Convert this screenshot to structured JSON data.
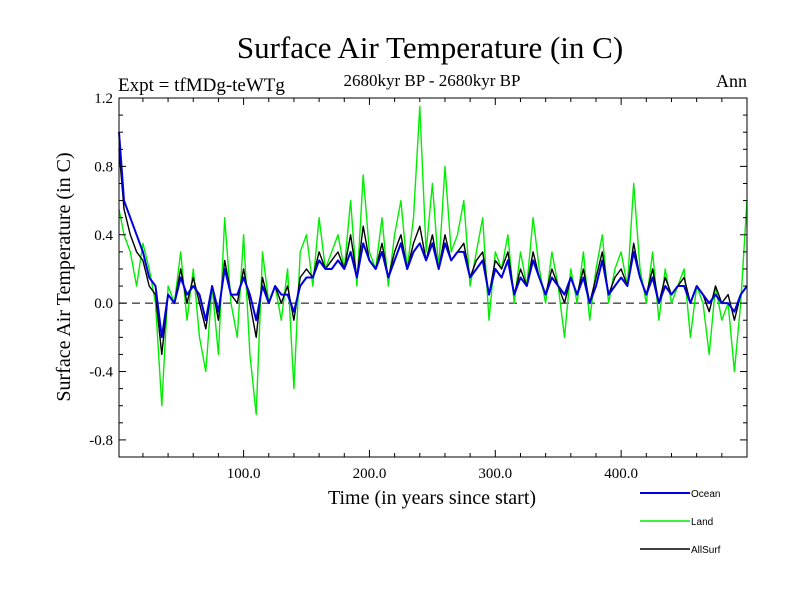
{
  "chart_data": {
    "type": "line",
    "title": "Surface Air Temperature (in C)",
    "subtitle_left": "Expt = tfMDg-teWTg",
    "subtitle_center": "2680kyr BP - 2680kyr BP",
    "subtitle_right": "Ann",
    "xlabel": "Time (in years since start)",
    "ylabel": "Surface Air Temperature (in C)",
    "xlim": [
      1,
      500
    ],
    "ylim": [
      -0.9,
      1.2
    ],
    "xticks": [
      100,
      200,
      300,
      400
    ],
    "xtick_labels": [
      "100.0",
      "200.0",
      "300.0",
      "400.0"
    ],
    "yticks": [
      -0.8,
      -0.4,
      0.0,
      0.4,
      0.8,
      1.2
    ],
    "ytick_labels": [
      "-0.8",
      "-0.4",
      "0.0",
      "0.4",
      "0.8",
      "1.2"
    ],
    "reference_line": 0.0,
    "legend_position": "bottom-right",
    "series": [
      {
        "name": "Land",
        "color": "#00ee00",
        "x": [
          1,
          5,
          10,
          15,
          20,
          25,
          30,
          35,
          40,
          45,
          50,
          55,
          60,
          65,
          70,
          75,
          80,
          85,
          90,
          95,
          100,
          105,
          110,
          115,
          120,
          125,
          130,
          135,
          140,
          145,
          150,
          155,
          160,
          165,
          170,
          175,
          180,
          185,
          190,
          195,
          200,
          205,
          210,
          215,
          220,
          225,
          230,
          235,
          240,
          245,
          250,
          255,
          260,
          265,
          270,
          275,
          280,
          285,
          290,
          295,
          300,
          305,
          310,
          315,
          320,
          325,
          330,
          335,
          340,
          345,
          350,
          355,
          360,
          365,
          370,
          375,
          380,
          385,
          390,
          395,
          400,
          405,
          410,
          415,
          420,
          425,
          430,
          435,
          440,
          445,
          450,
          455,
          460,
          465,
          470,
          475,
          480,
          485,
          490,
          495,
          500
        ],
        "values": [
          0.55,
          0.4,
          0.3,
          0.1,
          0.35,
          0.2,
          0.0,
          -0.6,
          0.1,
          0.0,
          0.3,
          -0.1,
          0.2,
          -0.2,
          -0.4,
          0.1,
          -0.3,
          0.5,
          0.0,
          -0.2,
          0.4,
          -0.3,
          -0.65,
          0.3,
          0.0,
          0.1,
          -0.1,
          0.2,
          -0.5,
          0.3,
          0.4,
          0.1,
          0.5,
          0.2,
          0.3,
          0.4,
          0.2,
          0.6,
          0.1,
          0.75,
          0.3,
          0.2,
          0.5,
          0.1,
          0.4,
          0.6,
          0.2,
          0.5,
          1.15,
          0.3,
          0.7,
          0.2,
          0.8,
          0.3,
          0.4,
          0.6,
          0.1,
          0.3,
          0.5,
          -0.1,
          0.3,
          0.2,
          0.4,
          0.0,
          0.3,
          0.1,
          0.5,
          0.2,
          0.0,
          0.3,
          0.1,
          -0.2,
          0.2,
          0.0,
          0.3,
          -0.1,
          0.2,
          0.4,
          0.0,
          0.2,
          0.3,
          0.1,
          0.7,
          0.2,
          0.0,
          0.3,
          -0.1,
          0.2,
          0.0,
          0.1,
          0.2,
          -0.2,
          0.1,
          0.0,
          -0.3,
          0.1,
          -0.1,
          0.0,
          -0.4,
          0.0,
          0.6
        ]
      },
      {
        "name": "AllSurf",
        "color": "#000000",
        "x": [
          1,
          5,
          10,
          15,
          20,
          25,
          30,
          35,
          40,
          45,
          50,
          55,
          60,
          65,
          70,
          75,
          80,
          85,
          90,
          95,
          100,
          105,
          110,
          115,
          120,
          125,
          130,
          135,
          140,
          145,
          150,
          155,
          160,
          165,
          170,
          175,
          180,
          185,
          190,
          195,
          200,
          205,
          210,
          215,
          220,
          225,
          230,
          235,
          240,
          245,
          250,
          255,
          260,
          265,
          270,
          275,
          280,
          285,
          290,
          295,
          300,
          305,
          310,
          315,
          320,
          325,
          330,
          335,
          340,
          345,
          350,
          355,
          360,
          365,
          370,
          375,
          380,
          385,
          390,
          395,
          400,
          405,
          410,
          415,
          420,
          425,
          430,
          435,
          440,
          445,
          450,
          455,
          460,
          465,
          470,
          475,
          480,
          485,
          490,
          495,
          500
        ],
        "values": [
          0.9,
          0.55,
          0.4,
          0.3,
          0.25,
          0.1,
          0.05,
          -0.3,
          0.05,
          0.0,
          0.2,
          0.0,
          0.15,
          0.0,
          -0.15,
          0.1,
          -0.1,
          0.25,
          0.05,
          0.0,
          0.2,
          0.0,
          -0.2,
          0.15,
          0.0,
          0.1,
          0.0,
          0.1,
          -0.1,
          0.15,
          0.2,
          0.15,
          0.3,
          0.2,
          0.25,
          0.3,
          0.2,
          0.4,
          0.15,
          0.45,
          0.25,
          0.2,
          0.35,
          0.15,
          0.3,
          0.4,
          0.2,
          0.35,
          0.45,
          0.25,
          0.4,
          0.2,
          0.4,
          0.25,
          0.3,
          0.35,
          0.15,
          0.25,
          0.3,
          0.05,
          0.25,
          0.2,
          0.3,
          0.05,
          0.2,
          0.1,
          0.3,
          0.15,
          0.05,
          0.2,
          0.1,
          0.0,
          0.15,
          0.05,
          0.2,
          0.0,
          0.15,
          0.3,
          0.05,
          0.15,
          0.2,
          0.1,
          0.35,
          0.15,
          0.05,
          0.2,
          0.0,
          0.15,
          0.05,
          0.1,
          0.15,
          0.0,
          0.1,
          0.05,
          -0.05,
          0.1,
          0.0,
          0.05,
          -0.1,
          0.05,
          0.1
        ]
      },
      {
        "name": "Ocean",
        "color": "#0000dd",
        "x": [
          1,
          5,
          10,
          15,
          20,
          25,
          30,
          35,
          40,
          45,
          50,
          55,
          60,
          65,
          70,
          75,
          80,
          85,
          90,
          95,
          100,
          105,
          110,
          115,
          120,
          125,
          130,
          135,
          140,
          145,
          150,
          155,
          160,
          165,
          170,
          175,
          180,
          185,
          190,
          195,
          200,
          205,
          210,
          215,
          220,
          225,
          230,
          235,
          240,
          245,
          250,
          255,
          260,
          265,
          270,
          275,
          280,
          285,
          290,
          295,
          300,
          305,
          310,
          315,
          320,
          325,
          330,
          335,
          340,
          345,
          350,
          355,
          360,
          365,
          370,
          375,
          380,
          385,
          390,
          395,
          400,
          405,
          410,
          415,
          420,
          425,
          430,
          435,
          440,
          445,
          450,
          455,
          460,
          465,
          470,
          475,
          480,
          485,
          490,
          495,
          500
        ],
        "values": [
          1.0,
          0.6,
          0.5,
          0.4,
          0.3,
          0.15,
          0.1,
          -0.2,
          0.05,
          0.0,
          0.15,
          0.05,
          0.1,
          0.05,
          -0.1,
          0.1,
          -0.05,
          0.2,
          0.05,
          0.05,
          0.15,
          0.05,
          -0.1,
          0.1,
          0.0,
          0.1,
          0.05,
          0.05,
          -0.05,
          0.1,
          0.15,
          0.15,
          0.25,
          0.2,
          0.2,
          0.25,
          0.2,
          0.3,
          0.15,
          0.35,
          0.25,
          0.2,
          0.3,
          0.15,
          0.25,
          0.35,
          0.2,
          0.3,
          0.35,
          0.25,
          0.35,
          0.2,
          0.35,
          0.25,
          0.3,
          0.3,
          0.15,
          0.2,
          0.25,
          0.05,
          0.2,
          0.15,
          0.25,
          0.05,
          0.15,
          0.1,
          0.25,
          0.15,
          0.05,
          0.15,
          0.1,
          0.05,
          0.15,
          0.05,
          0.15,
          0.0,
          0.1,
          0.25,
          0.05,
          0.1,
          0.15,
          0.1,
          0.3,
          0.15,
          0.05,
          0.15,
          0.0,
          0.1,
          0.05,
          0.1,
          0.1,
          0.0,
          0.1,
          0.05,
          0.0,
          0.05,
          0.0,
          0.0,
          -0.05,
          0.05,
          0.1
        ]
      }
    ],
    "legend_order": [
      "Ocean",
      "Land",
      "AllSurf"
    ]
  }
}
